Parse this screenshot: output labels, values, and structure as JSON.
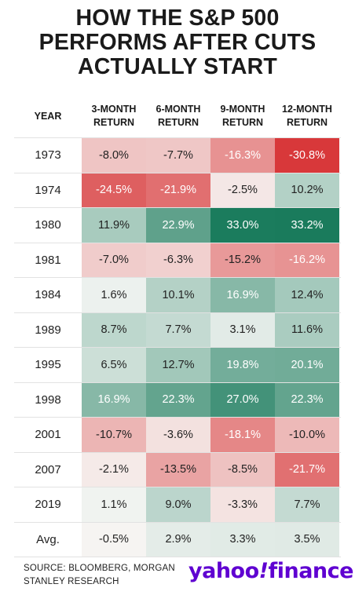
{
  "title_lines": [
    "HOW THE S&P 500",
    "PERFORMS AFTER CUTS",
    "ACTUALLY START"
  ],
  "headers": {
    "year": "YEAR",
    "cols": [
      [
        "3-MONTH",
        "RETURN"
      ],
      [
        "6-MONTH",
        "RETURN"
      ],
      [
        "9-MONTH",
        "RETURN"
      ],
      [
        "12-MONTH",
        "RETURN"
      ]
    ]
  },
  "chart_data": {
    "type": "table",
    "title": "HOW THE S&P 500 PERFORMS AFTER CUTS ACTUALLY START",
    "columns": [
      "YEAR",
      "3-MONTH RETURN",
      "6-MONTH RETURN",
      "9-MONTH RETURN",
      "12-MONTH RETURN"
    ],
    "rows": [
      {
        "year": "1973",
        "values": [
          -8.0,
          -7.7,
          -16.3,
          -30.8
        ],
        "labels": [
          "-8.0%",
          "-7.7%",
          "-16.3%",
          "-30.8%"
        ]
      },
      {
        "year": "1974",
        "values": [
          -24.5,
          -21.9,
          -2.5,
          10.2
        ],
        "labels": [
          "-24.5%",
          "-21.9%",
          "-2.5%",
          "10.2%"
        ]
      },
      {
        "year": "1980",
        "values": [
          11.9,
          22.9,
          33.0,
          33.2
        ],
        "labels": [
          "11.9%",
          "22.9%",
          "33.0%",
          "33.2%"
        ]
      },
      {
        "year": "1981",
        "values": [
          -7.0,
          -6.3,
          -15.2,
          -16.2
        ],
        "labels": [
          "-7.0%",
          "-6.3%",
          "-15.2%",
          "-16.2%"
        ]
      },
      {
        "year": "1984",
        "values": [
          1.6,
          10.1,
          16.9,
          12.4
        ],
        "labels": [
          "1.6%",
          "10.1%",
          "16.9%",
          "12.4%"
        ]
      },
      {
        "year": "1989",
        "values": [
          8.7,
          7.7,
          3.1,
          11.6
        ],
        "labels": [
          "8.7%",
          "7.7%",
          "3.1%",
          "11.6%"
        ]
      },
      {
        "year": "1995",
        "values": [
          6.5,
          12.7,
          19.8,
          20.1
        ],
        "labels": [
          "6.5%",
          "12.7%",
          "19.8%",
          "20.1%"
        ]
      },
      {
        "year": "1998",
        "values": [
          16.9,
          22.3,
          27.0,
          22.3
        ],
        "labels": [
          "16.9%",
          "22.3%",
          "27.0%",
          "22.3%"
        ]
      },
      {
        "year": "2001",
        "values": [
          -10.7,
          -3.6,
          -18.1,
          -10.0
        ],
        "labels": [
          "-10.7%",
          "-3.6%",
          "-18.1%",
          "-10.0%"
        ]
      },
      {
        "year": "2007",
        "values": [
          -2.1,
          -13.5,
          -8.5,
          -21.7
        ],
        "labels": [
          "-2.1%",
          "-13.5%",
          "-8.5%",
          "-21.7%"
        ]
      },
      {
        "year": "2019",
        "values": [
          1.1,
          9.0,
          -3.3,
          7.7
        ],
        "labels": [
          "1.1%",
          "9.0%",
          "-3.3%",
          "7.7%"
        ]
      },
      {
        "year": "Avg.",
        "values": [
          -0.5,
          2.9,
          3.3,
          3.5
        ],
        "labels": [
          "-0.5%",
          "2.9%",
          "3.3%",
          "3.5%"
        ]
      }
    ],
    "colors": {
      "negative_max": "#d8383a",
      "neutral": "#f7f7f5",
      "positive_max": "#1a7b5c"
    }
  },
  "source_lines": [
    "SOURCE: BLOOMBERG, MORGAN",
    "STANLEY RESEARCH"
  ],
  "logo": {
    "part1": "yahoo",
    "bang": "!",
    "part2": "finance",
    "color": "#5f01d1"
  }
}
